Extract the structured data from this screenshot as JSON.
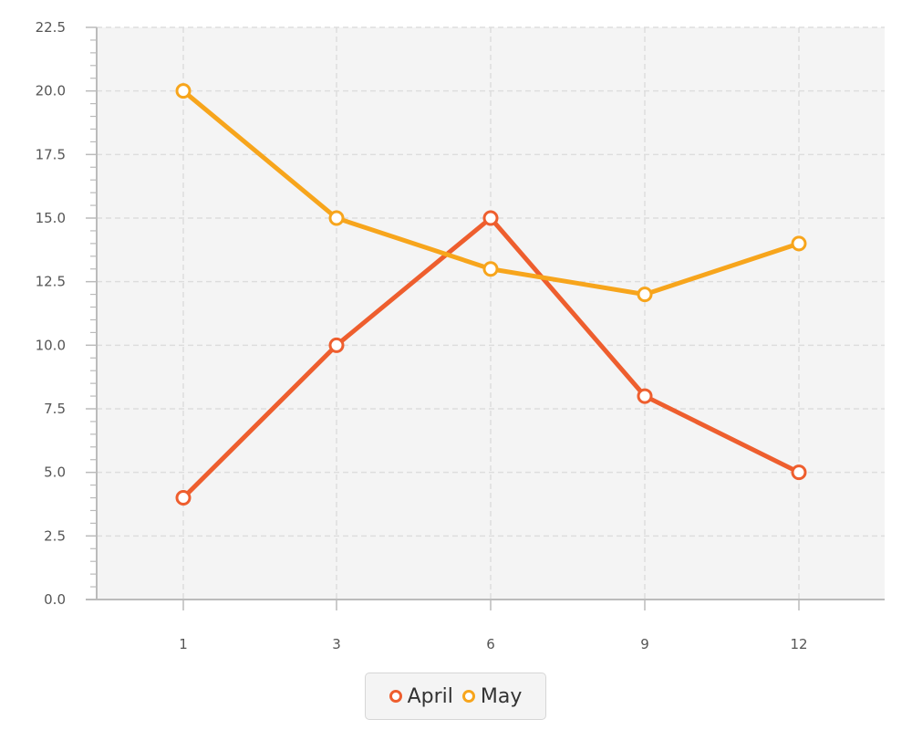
{
  "chart_data": {
    "type": "line",
    "x": [
      1,
      3,
      6,
      9,
      12
    ],
    "x_tick_labels": [
      "1",
      "3",
      "6",
      "9",
      "12"
    ],
    "y_tick_labels": [
      "0.0",
      "2.5",
      "5.0",
      "7.5",
      "10.0",
      "12.5",
      "15.0",
      "17.5",
      "20.0",
      "22.5"
    ],
    "ylim": [
      0,
      22.5
    ],
    "grid": true,
    "legend_position": "bottom-center",
    "series": [
      {
        "name": "April",
        "color": "#ee5e2e",
        "values": [
          4,
          10,
          15,
          8,
          5
        ]
      },
      {
        "name": "May",
        "color": "#f7a51c",
        "values": [
          20,
          15,
          13,
          12,
          14
        ]
      }
    ],
    "colors": {
      "plot_background": "#f4f4f4",
      "gridline": "#dddddd",
      "axis": "#bbbbbb"
    }
  }
}
